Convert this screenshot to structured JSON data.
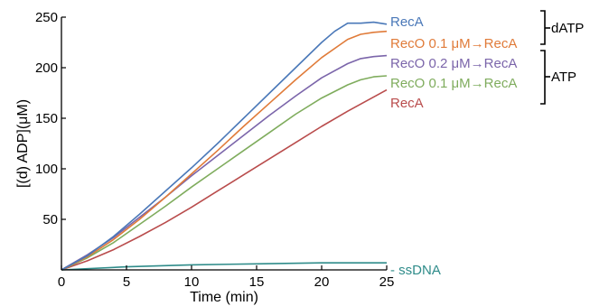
{
  "chart_data": {
    "type": "line",
    "xlabel": "Time (min)",
    "ylabel": "[(d) ADP](μM)",
    "xlim": [
      0,
      25
    ],
    "ylim": [
      0,
      250
    ],
    "xticks": [
      "0",
      "5",
      "10",
      "15",
      "20",
      "25"
    ],
    "yticks": [
      "50",
      "100",
      "150",
      "200",
      "250"
    ],
    "grid": false,
    "legend": "inline labels at right end of lines",
    "series": [
      {
        "name": "RecA",
        "group": "dATP",
        "color": "#4a78b8",
        "x": [
          0,
          2,
          4,
          6,
          8,
          10,
          12,
          14,
          16,
          18,
          20,
          21,
          22,
          23,
          24,
          25
        ],
        "y": [
          0,
          14,
          33,
          55,
          78,
          101,
          125,
          150,
          175,
          200,
          225,
          236,
          244,
          244,
          245,
          243
        ]
      },
      {
        "name": "RecO 0.1 μM→RecA",
        "group": "dATP",
        "color": "#e07b39",
        "x": [
          0,
          2,
          4,
          6,
          8,
          10,
          12,
          14,
          16,
          18,
          20,
          22,
          23,
          24,
          25
        ],
        "y": [
          0,
          13,
          30,
          50,
          72,
          95,
          118,
          142,
          165,
          188,
          210,
          228,
          233,
          235,
          236
        ]
      },
      {
        "name": "RecO 0.2 μM→RecA",
        "group": "ATP",
        "color": "#7b65aa",
        "x": [
          0,
          2,
          4,
          6,
          8,
          10,
          12,
          14,
          16,
          18,
          20,
          22,
          23,
          24,
          25
        ],
        "y": [
          0,
          15,
          32,
          52,
          72,
          93,
          113,
          133,
          153,
          172,
          190,
          204,
          209,
          211,
          212
        ]
      },
      {
        "name": "RecO 0.1 μM→RecA",
        "group": "ATP",
        "color": "#7fac5d",
        "x": [
          0,
          2,
          4,
          6,
          8,
          10,
          12,
          14,
          16,
          18,
          20,
          22,
          23,
          24,
          25
        ],
        "y": [
          0,
          12,
          27,
          45,
          63,
          82,
          100,
          118,
          136,
          154,
          170,
          183,
          188,
          191,
          192
        ]
      },
      {
        "name": "RecA",
        "group": "ATP",
        "color": "#b94c4c",
        "x": [
          0,
          2,
          4,
          6,
          8,
          10,
          12,
          14,
          16,
          18,
          20,
          22,
          25
        ],
        "y": [
          0,
          9,
          20,
          33,
          47,
          62,
          78,
          94,
          110,
          126,
          142,
          157,
          178
        ]
      },
      {
        "name": "- ssDNA",
        "color": "#2f8c8a",
        "x": [
          0,
          5,
          10,
          15,
          20,
          25
        ],
        "y": [
          0,
          3,
          5,
          6,
          7,
          7
        ]
      }
    ],
    "brackets": [
      "dATP",
      "ATP"
    ]
  }
}
